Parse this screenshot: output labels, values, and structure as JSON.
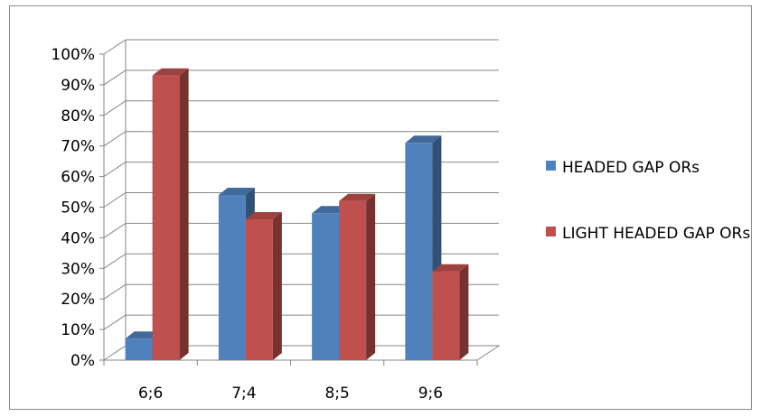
{
  "chart_data": {
    "type": "bar",
    "categories": [
      "6;6",
      "7;4",
      "8;5",
      "9;6"
    ],
    "series": [
      {
        "name": "HEADED GAP ORs",
        "values": [
          7,
          54,
          48,
          71
        ],
        "color": "#4f81bd"
      },
      {
        "name": "LIGHT HEADED GAP ORs",
        "values": [
          93,
          46,
          52,
          29
        ],
        "color": "#c0504d"
      }
    ],
    "ylim": [
      0,
      100
    ],
    "ytick_labels": [
      "0%",
      "10%",
      "20%",
      "30%",
      "40%",
      "50%",
      "60%",
      "70%",
      "80%",
      "90%",
      "100%"
    ],
    "grid": true,
    "legend_position": "right",
    "three_d": true
  }
}
